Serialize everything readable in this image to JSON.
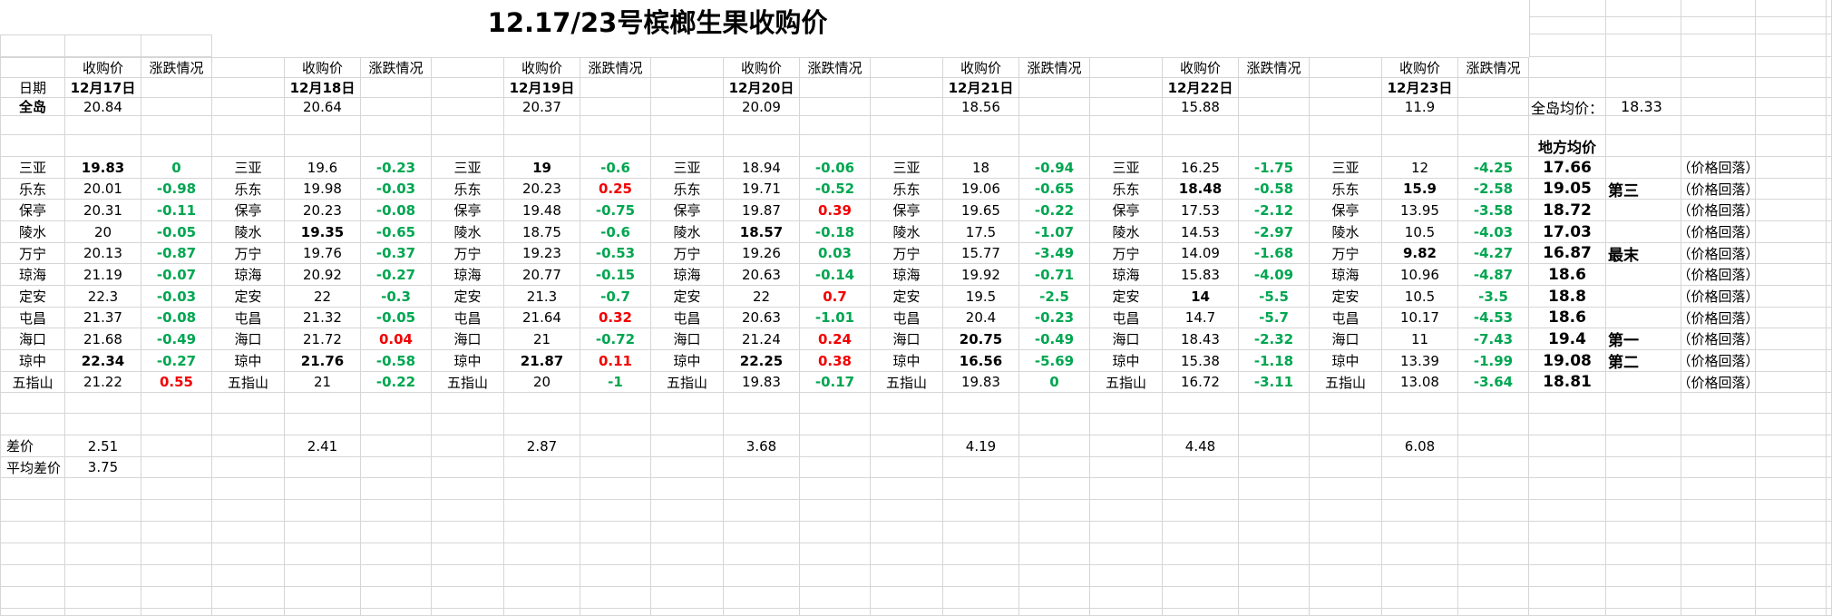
{
  "title": "12.17/23号槟榔生果收购价",
  "colors": {
    "up": "#F20000",
    "down": "#00A651",
    "grid": "#D6D6D6",
    "text": "#000000"
  },
  "headers": {
    "price": "收购价",
    "change": "涨跌情况",
    "date_label": "日期",
    "island_label": "全岛"
  },
  "dates": [
    "12月17日",
    "12月18日",
    "12月19日",
    "12月20日",
    "12月21日",
    "12月22日",
    "12月23日"
  ],
  "island_prices": [
    "20.84",
    "20.64",
    "20.37",
    "20.09",
    "18.56",
    "15.88",
    "11.9"
  ],
  "summary": {
    "island_avg_label": "全岛均价：",
    "island_avg_value": "18.33",
    "local_avg_label": "地方均价"
  },
  "rows": [
    {
      "city": "三亚",
      "cells": [
        {
          "p": "19.83",
          "c": "0",
          "pb": true,
          "up": false
        },
        {
          "p": "19.6",
          "c": "-0.23",
          "pb": false,
          "up": false
        },
        {
          "p": "19",
          "c": "-0.6",
          "pb": true,
          "up": false
        },
        {
          "p": "18.94",
          "c": "-0.06",
          "pb": false,
          "up": false
        },
        {
          "p": "18",
          "c": "-0.94",
          "pb": false,
          "up": false
        },
        {
          "p": "16.25",
          "c": "-1.75",
          "pb": false,
          "up": false
        },
        {
          "p": "12",
          "c": "-4.25",
          "pb": false,
          "up": false
        }
      ],
      "avg": "17.66",
      "rank": "",
      "note": "（价格回落）"
    },
    {
      "city": "乐东",
      "cells": [
        {
          "p": "20.01",
          "c": "-0.98",
          "pb": false,
          "up": false
        },
        {
          "p": "19.98",
          "c": "-0.03",
          "pb": false,
          "up": false
        },
        {
          "p": "20.23",
          "c": "0.25",
          "pb": false,
          "up": true
        },
        {
          "p": "19.71",
          "c": "-0.52",
          "pb": false,
          "up": false
        },
        {
          "p": "19.06",
          "c": "-0.65",
          "pb": false,
          "up": false
        },
        {
          "p": "18.48",
          "c": "-0.58",
          "pb": true,
          "up": false
        },
        {
          "p": "15.9",
          "c": "-2.58",
          "pb": true,
          "up": false
        }
      ],
      "avg": "19.05",
      "rank": "第三",
      "note": "（价格回落）"
    },
    {
      "city": "保亭",
      "cells": [
        {
          "p": "20.31",
          "c": "-0.11",
          "pb": false,
          "up": false
        },
        {
          "p": "20.23",
          "c": "-0.08",
          "pb": false,
          "up": false
        },
        {
          "p": "19.48",
          "c": "-0.75",
          "pb": false,
          "up": false
        },
        {
          "p": "19.87",
          "c": "0.39",
          "pb": false,
          "up": true
        },
        {
          "p": "19.65",
          "c": "-0.22",
          "pb": false,
          "up": false
        },
        {
          "p": "17.53",
          "c": "-2.12",
          "pb": false,
          "up": false
        },
        {
          "p": "13.95",
          "c": "-3.58",
          "pb": false,
          "up": false
        }
      ],
      "avg": "18.72",
      "rank": "",
      "note": "（价格回落）"
    },
    {
      "city": "陵水",
      "cells": [
        {
          "p": "20",
          "c": "-0.05",
          "pb": false,
          "up": false
        },
        {
          "p": "19.35",
          "c": "-0.65",
          "pb": true,
          "up": false
        },
        {
          "p": "18.75",
          "c": "-0.6",
          "pb": false,
          "up": false
        },
        {
          "p": "18.57",
          "c": "-0.18",
          "pb": true,
          "up": false
        },
        {
          "p": "17.5",
          "c": "-1.07",
          "pb": false,
          "up": false
        },
        {
          "p": "14.53",
          "c": "-2.97",
          "pb": false,
          "up": false
        },
        {
          "p": "10.5",
          "c": "-4.03",
          "pb": false,
          "up": false
        }
      ],
      "avg": "17.03",
      "rank": "",
      "note": "（价格回落）"
    },
    {
      "city": "万宁",
      "cells": [
        {
          "p": "20.13",
          "c": "-0.87",
          "pb": false,
          "up": false
        },
        {
          "p": "19.76",
          "c": "-0.37",
          "pb": false,
          "up": false
        },
        {
          "p": "19.23",
          "c": "-0.53",
          "pb": false,
          "up": false
        },
        {
          "p": "19.26",
          "c": "0.03",
          "pb": false,
          "up": false
        },
        {
          "p": "15.77",
          "c": "-3.49",
          "pb": false,
          "up": false
        },
        {
          "p": "14.09",
          "c": "-1.68",
          "pb": false,
          "up": false
        },
        {
          "p": "9.82",
          "c": "-4.27",
          "pb": true,
          "up": false
        }
      ],
      "avg": "16.87",
      "rank": "最末",
      "note": "（价格回落）"
    },
    {
      "city": "琼海",
      "cells": [
        {
          "p": "21.19",
          "c": "-0.07",
          "pb": false,
          "up": false
        },
        {
          "p": "20.92",
          "c": "-0.27",
          "pb": false,
          "up": false
        },
        {
          "p": "20.77",
          "c": "-0.15",
          "pb": false,
          "up": false
        },
        {
          "p": "20.63",
          "c": "-0.14",
          "pb": false,
          "up": false
        },
        {
          "p": "19.92",
          "c": "-0.71",
          "pb": false,
          "up": false
        },
        {
          "p": "15.83",
          "c": "-4.09",
          "pb": false,
          "up": false
        },
        {
          "p": "10.96",
          "c": "-4.87",
          "pb": false,
          "up": false
        }
      ],
      "avg": "18.6",
      "rank": "",
      "note": "（价格回落）"
    },
    {
      "city": "定安",
      "cells": [
        {
          "p": "22.3",
          "c": "-0.03",
          "pb": false,
          "up": false
        },
        {
          "p": "22",
          "c": "-0.3",
          "pb": false,
          "up": false
        },
        {
          "p": "21.3",
          "c": "-0.7",
          "pb": false,
          "up": false
        },
        {
          "p": "22",
          "c": "0.7",
          "pb": false,
          "up": true
        },
        {
          "p": "19.5",
          "c": "-2.5",
          "pb": false,
          "up": false
        },
        {
          "p": "14",
          "c": "-5.5",
          "pb": true,
          "up": false
        },
        {
          "p": "10.5",
          "c": "-3.5",
          "pb": false,
          "up": false
        }
      ],
      "avg": "18.8",
      "rank": "",
      "note": "（价格回落）"
    },
    {
      "city": "屯昌",
      "cells": [
        {
          "p": "21.37",
          "c": "-0.08",
          "pb": false,
          "up": false
        },
        {
          "p": "21.32",
          "c": "-0.05",
          "pb": false,
          "up": false
        },
        {
          "p": "21.64",
          "c": "0.32",
          "pb": false,
          "up": true
        },
        {
          "p": "20.63",
          "c": "-1.01",
          "pb": false,
          "up": false
        },
        {
          "p": "20.4",
          "c": "-0.23",
          "pb": false,
          "up": false
        },
        {
          "p": "14.7",
          "c": "-5.7",
          "pb": false,
          "up": false
        },
        {
          "p": "10.17",
          "c": "-4.53",
          "pb": false,
          "up": false
        }
      ],
      "avg": "18.6",
      "rank": "",
      "note": "（价格回落）"
    },
    {
      "city": "海口",
      "cells": [
        {
          "p": "21.68",
          "c": "-0.49",
          "pb": false,
          "up": false
        },
        {
          "p": "21.72",
          "c": "0.04",
          "pb": false,
          "up": true
        },
        {
          "p": "21",
          "c": "-0.72",
          "pb": false,
          "up": false
        },
        {
          "p": "21.24",
          "c": "0.24",
          "pb": false,
          "up": true
        },
        {
          "p": "20.75",
          "c": "-0.49",
          "pb": true,
          "up": false
        },
        {
          "p": "18.43",
          "c": "-2.32",
          "pb": false,
          "up": false
        },
        {
          "p": "11",
          "c": "-7.43",
          "pb": false,
          "up": false
        }
      ],
      "avg": "19.4",
      "rank": "第一",
      "note": "（价格回落）"
    },
    {
      "city": "琼中",
      "cells": [
        {
          "p": "22.34",
          "c": "-0.27",
          "pb": true,
          "up": false
        },
        {
          "p": "21.76",
          "c": "-0.58",
          "pb": true,
          "up": false
        },
        {
          "p": "21.87",
          "c": "0.11",
          "pb": true,
          "up": true
        },
        {
          "p": "22.25",
          "c": "0.38",
          "pb": true,
          "up": true
        },
        {
          "p": "16.56",
          "c": "-5.69",
          "pb": true,
          "up": false
        },
        {
          "p": "15.38",
          "c": "-1.18",
          "pb": false,
          "up": false
        },
        {
          "p": "13.39",
          "c": "-1.99",
          "pb": false,
          "up": false
        }
      ],
      "avg": "19.08",
      "rank": "第二",
      "note": "（价格回落）"
    },
    {
      "city": "五指山",
      "cells": [
        {
          "p": "21.22",
          "c": "0.55",
          "pb": false,
          "up": true
        },
        {
          "p": "21",
          "c": "-0.22",
          "pb": false,
          "up": false
        },
        {
          "p": "20",
          "c": "-1",
          "pb": false,
          "up": false
        },
        {
          "p": "19.83",
          "c": "-0.17",
          "pb": false,
          "up": false
        },
        {
          "p": "19.83",
          "c": "0",
          "pb": false,
          "up": false
        },
        {
          "p": "16.72",
          "c": "-3.11",
          "pb": false,
          "up": false
        },
        {
          "p": "13.08",
          "c": "-3.64",
          "pb": false,
          "up": false
        }
      ],
      "avg": "18.81",
      "rank": "",
      "note": "（价格回落）"
    }
  ],
  "diff": {
    "label": "差价",
    "values": [
      "2.51",
      "2.41",
      "2.87",
      "3.68",
      "4.19",
      "4.48",
      "6.08"
    ]
  },
  "avg_diff": {
    "label": "平均差价",
    "value": "3.75"
  }
}
